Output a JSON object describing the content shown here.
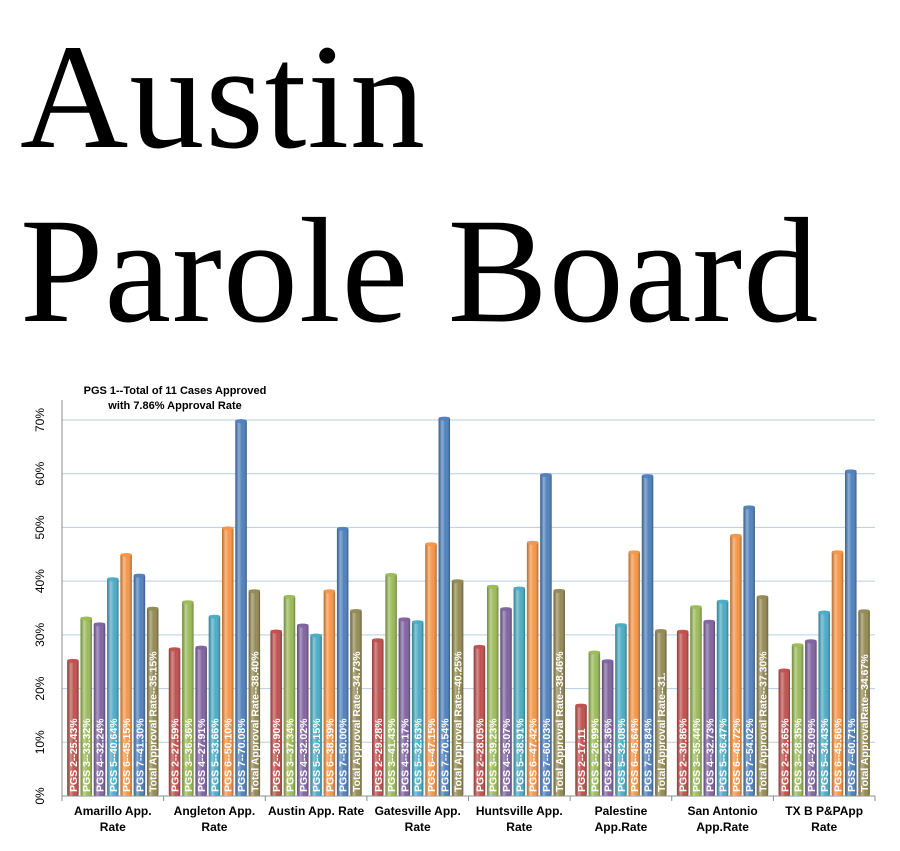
{
  "title": {
    "line1": "Austin",
    "line2": "Parole Board"
  },
  "chart_data": {
    "type": "bar",
    "title": "",
    "xlabel": "",
    "ylabel": "",
    "ylim": [
      0,
      70
    ],
    "yticks": [
      "0%",
      "10%",
      "20%",
      "30%",
      "40%",
      "50%",
      "60%",
      "70%"
    ],
    "grid": true,
    "annotation": [
      "PGS 1--Total of 11 Cases Approved",
      "with 7.86% Approval Rate"
    ],
    "categories": [
      [
        "Amarillo App.",
        "Rate"
      ],
      [
        "Angleton App.",
        "Rate"
      ],
      [
        "Austin App. Rate"
      ],
      [
        "Gatesville App.",
        "Rate"
      ],
      [
        "Huntsville App.",
        "Rate"
      ],
      [
        "Palestine",
        "App.Rate"
      ],
      [
        "San Antonio",
        "App.Rate"
      ],
      [
        "TX B P&PApp",
        "Rate"
      ]
    ],
    "series_colors": [
      "#c0504d",
      "#9bbb59",
      "#8064a2",
      "#4bacc6",
      "#f79646",
      "#4f81bd",
      "#948a54"
    ],
    "groups": [
      {
        "values": [
          25.43,
          33.32,
          32.24,
          40.64,
          45.15,
          41.3,
          35.15
        ],
        "labels": [
          "PGS 2--25.43%",
          "PGS 3--33.32%",
          "PGS 4--32.24%",
          "PGS 5--40.64%",
          "PGS 6--45.15%",
          "PGS 7--41.30%",
          "Total Approval Rate--35.15%"
        ]
      },
      {
        "values": [
          27.59,
          36.36,
          27.91,
          33.66,
          50.1,
          70.08,
          38.4
        ],
        "labels": [
          "PGS 2--27.59%",
          "PGS 3--36.36%",
          "PGS 4--27.91%",
          "PGS 5--33.66%",
          "PGS 6--50.10%",
          "PGS 7--70.08%",
          "Total Approval Rate--38.40%"
        ]
      },
      {
        "values": [
          30.9,
          37.34,
          32.02,
          30.15,
          38.39,
          50.0,
          34.73
        ],
        "labels": [
          "PGS 2--30.90%",
          "PGS 3--37.34%",
          "PGS 4--32.02%",
          "PGS 5--30.15%",
          "PGS 6--38.39%",
          "PGS 7--50.00%",
          "Total Approval Rate--34.73%"
        ]
      },
      {
        "values": [
          29.28,
          41.43,
          33.17,
          32.63,
          47.15,
          70.54,
          40.25
        ],
        "labels": [
          "PGS 2--29.28%",
          "PGS 3--41.43%",
          "PGS 4--33.17%",
          "PGS 5--32.63%",
          "PGS 6--47.15%",
          "PGS 7--70.54%",
          "Total Approval Rate--40.25%"
        ]
      },
      {
        "values": [
          28.05,
          39.23,
          35.07,
          38.91,
          47.42,
          60.03,
          38.46
        ],
        "labels": [
          "PGS 2--28.05%",
          "PGS 3--39.23%",
          "PGS 4--35.07%",
          "PGS 5--38.91%",
          "PGS 6--47.42%",
          "PGS 7--60.03%",
          "Total Approval Rate--38.46%"
        ]
      },
      {
        "values": [
          17.11,
          26.99,
          25.36,
          32.08,
          45.64,
          59.84,
          31.0
        ],
        "labels": [
          "PGS 2--17.11",
          "PGS 3--26.99%",
          "PGS 4--25.36%",
          "PGS 5--32.08%",
          "PGS 6--45.64%",
          "PGS 7--59.84%",
          "Total Approval Rate--31."
        ]
      },
      {
        "values": [
          30.86,
          35.44,
          32.73,
          36.47,
          48.72,
          54.02,
          37.3
        ],
        "labels": [
          "PGS 2--30.86%",
          "PGS 3--35.44%",
          "PGS 4--32.73%",
          "PGS 5--36.47%",
          "PGS 6--48.72%",
          "PGS 7--54.02%",
          "Total Approval Rate--37.30%"
        ]
      },
      {
        "values": [
          23.65,
          28.35,
          29.09,
          34.43,
          45.66,
          60.71,
          34.67
        ],
        "labels": [
          "PGS 2--23.65%",
          "PGS 3--28.35%",
          "PGS 4--29.09%",
          "PGS 5--34.43%",
          "PGS 6--45.66%",
          "PGS 7--60.71%",
          "Total ApprovalRate--34.67%"
        ]
      }
    ]
  }
}
